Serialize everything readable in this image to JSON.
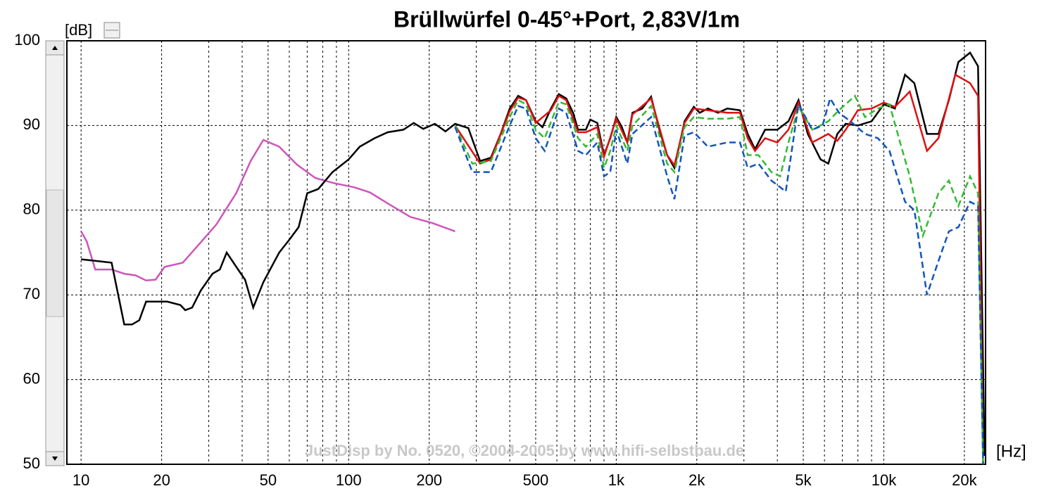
{
  "chart_data": {
    "type": "line",
    "title": "Brüllwürfel 0-45°+Port, 2,83V/1m",
    "ylabel": "[dB]",
    "xlabel": "[Hz]",
    "watermark": "JustDisp by No. 0520, ©2004-2005 by www.hifi-selbstbau.de",
    "xscale": "log",
    "grid": true,
    "xlim": [
      8.85,
      24000
    ],
    "ylim": [
      50,
      100
    ],
    "yticks": [
      50,
      60,
      70,
      80,
      90,
      100
    ],
    "xticks": [
      10,
      20,
      50,
      100,
      200,
      500,
      {
        "value": 1000,
        "label": "1k"
      },
      {
        "value": 2000,
        "label": "2k"
      },
      {
        "value": 5000,
        "label": "5k"
      },
      {
        "value": 10000,
        "label": "10k"
      },
      {
        "value": 20000,
        "label": "20k"
      }
    ],
    "minor_xticks": [
      30,
      40,
      60,
      70,
      80,
      90,
      300,
      400,
      600,
      700,
      800,
      900,
      3000,
      4000,
      6000,
      7000,
      8000,
      9000
    ],
    "series": [
      {
        "color": "#cc55bb",
        "style": "solid",
        "x": [
          10,
          10.5,
          11.3,
          13,
          14.5,
          16,
          17.5,
          19,
          20.5,
          24,
          28,
          32,
          38,
          43,
          48,
          55,
          64,
          75,
          88,
          105,
          120,
          140,
          170,
          205,
          250
        ],
        "values": [
          77.5,
          76.3,
          73,
          73,
          72.5,
          72.3,
          71.7,
          71.8,
          73.3,
          73.8,
          76.2,
          78.3,
          82,
          85.8,
          88.3,
          87.5,
          85.4,
          83.8,
          83.2,
          82.7,
          82.1,
          80.8,
          79.2,
          78.5,
          77.5
        ]
      },
      {
        "color": "#000000",
        "style": "solid",
        "x": [
          10,
          13,
          14.5,
          15.5,
          16.5,
          17.5,
          21,
          23.5,
          24.5,
          26,
          28,
          31,
          33,
          35,
          39,
          41,
          44,
          48,
          55,
          60,
          65,
          70,
          77,
          87,
          100,
          110,
          125,
          140,
          160,
          175,
          190,
          210,
          230,
          250,
          280,
          310,
          340,
          370,
          400,
          430,
          460,
          500,
          530,
          570,
          610,
          650,
          690,
          720,
          770,
          800,
          850,
          900,
          950,
          1000,
          1050,
          1100,
          1150,
          1250,
          1350,
          1450,
          1550,
          1650,
          1800,
          1950,
          2050,
          2200,
          2400,
          2600,
          2900,
          3100,
          3300,
          3600,
          4000,
          4400,
          4800,
          5200,
          5800,
          6200,
          6700,
          7200,
          8000,
          9000,
          10000,
          11000,
          12000,
          13000,
          14500,
          16000,
          17500,
          19000,
          21000,
          22500,
          23800
        ],
        "values": [
          74.2,
          73.8,
          66.5,
          66.5,
          67,
          69.2,
          69.2,
          68.8,
          68.2,
          68.5,
          70.5,
          72.5,
          73,
          75,
          72.8,
          71.8,
          68.5,
          71.5,
          75,
          76.5,
          78,
          82,
          82.5,
          84.5,
          86,
          87.5,
          88.5,
          89.2,
          89.5,
          90.3,
          89.6,
          90.2,
          89.3,
          90.2,
          89.7,
          85.8,
          86.2,
          89,
          92,
          93.5,
          93,
          90.5,
          89.8,
          92,
          93.7,
          93.2,
          91.5,
          89.5,
          89.5,
          90.7,
          90.3,
          86.5,
          88.5,
          91,
          89.8,
          88,
          91.5,
          92,
          93.4,
          89.5,
          86.5,
          85,
          90.5,
          92.2,
          91.5,
          92,
          91.5,
          92,
          91.8,
          89,
          87.2,
          89.5,
          89.5,
          90.5,
          93,
          89,
          86,
          85.5,
          89,
          90.2,
          90,
          90.5,
          92.5,
          92,
          96,
          95,
          89,
          89,
          93,
          97.5,
          98.6,
          97,
          51
        ]
      },
      {
        "color": "#dd1111",
        "style": "solid",
        "x": [
          250,
          310,
          340,
          400,
          430,
          460,
          500,
          570,
          610,
          650,
          720,
          770,
          850,
          900,
          1000,
          1100,
          1150,
          1350,
          1550,
          1650,
          1800,
          1950,
          2200,
          2600,
          2900,
          3100,
          3300,
          3600,
          4000,
          4400,
          4800,
          5400,
          6200,
          6700,
          7200,
          8000,
          9000,
          10000,
          11000,
          12500,
          14500,
          16000,
          18500,
          21000,
          22500,
          23500
        ],
        "values": [
          90,
          85.5,
          86,
          91.7,
          93.3,
          93,
          90.3,
          91.8,
          93.5,
          93,
          89.2,
          89.2,
          89.8,
          86.3,
          90.8,
          88,
          91.3,
          93.2,
          86.5,
          85.3,
          90.3,
          92,
          91.8,
          91.5,
          91.5,
          88.5,
          87,
          88.5,
          88,
          89.5,
          92.7,
          88,
          89,
          88.2,
          89.5,
          91.8,
          92,
          92.7,
          92.2,
          94,
          87,
          88.5,
          96,
          95,
          93.5,
          50
        ]
      },
      {
        "color": "#33bb33",
        "style": "dashed",
        "x": [
          250,
          290,
          340,
          400,
          430,
          460,
          500,
          540,
          610,
          650,
          720,
          770,
          850,
          900,
          950,
          1000,
          1100,
          1150,
          1350,
          1550,
          1650,
          1800,
          1950,
          2200,
          2600,
          2900,
          3100,
          3400,
          3800,
          4100,
          4400,
          4800,
          5400,
          6200,
          6800,
          7800,
          8500,
          9500,
          10500,
          11500,
          12500,
          14000,
          16000,
          17500,
          19000,
          21000,
          22500,
          23500
        ],
        "values": [
          90,
          85.5,
          85.8,
          91,
          93,
          92.5,
          89.5,
          88.5,
          92.8,
          92.5,
          88.5,
          87.5,
          89,
          85,
          87,
          90,
          87,
          90,
          92.3,
          85.5,
          84.5,
          89.8,
          91,
          90.8,
          90.8,
          91,
          86.5,
          86.5,
          84.5,
          84,
          88,
          92.2,
          89.5,
          90.5,
          91.8,
          93.5,
          91,
          92,
          92.5,
          88,
          84,
          77,
          82,
          83.5,
          80.5,
          84,
          82,
          50
        ]
      },
      {
        "color": "#1155bb",
        "style": "dashed",
        "x": [
          250,
          290,
          340,
          400,
          430,
          460,
          500,
          540,
          610,
          650,
          720,
          770,
          850,
          900,
          950,
          1000,
          1100,
          1150,
          1350,
          1550,
          1650,
          1800,
          1950,
          2200,
          2600,
          2900,
          3100,
          3400,
          3800,
          4300,
          4800,
          5400,
          5900,
          6300,
          6800,
          7500,
          8500,
          9500,
          10500,
          12000,
          13000,
          14500,
          16000,
          17500,
          19000,
          21000,
          22500,
          23500
        ],
        "values": [
          89.8,
          84.5,
          84.5,
          90,
          92.3,
          92,
          88.5,
          87,
          92,
          91.5,
          87,
          86.5,
          88,
          84,
          84.5,
          89.5,
          85.5,
          89,
          91,
          84,
          81.3,
          88.8,
          89.2,
          87.5,
          88,
          88,
          85,
          85.5,
          83.5,
          82.2,
          92.5,
          89.5,
          90,
          93.2,
          91.5,
          90.5,
          89,
          88.5,
          87,
          81,
          80,
          70,
          74,
          77.5,
          78,
          81,
          80.5,
          50
        ]
      }
    ]
  }
}
